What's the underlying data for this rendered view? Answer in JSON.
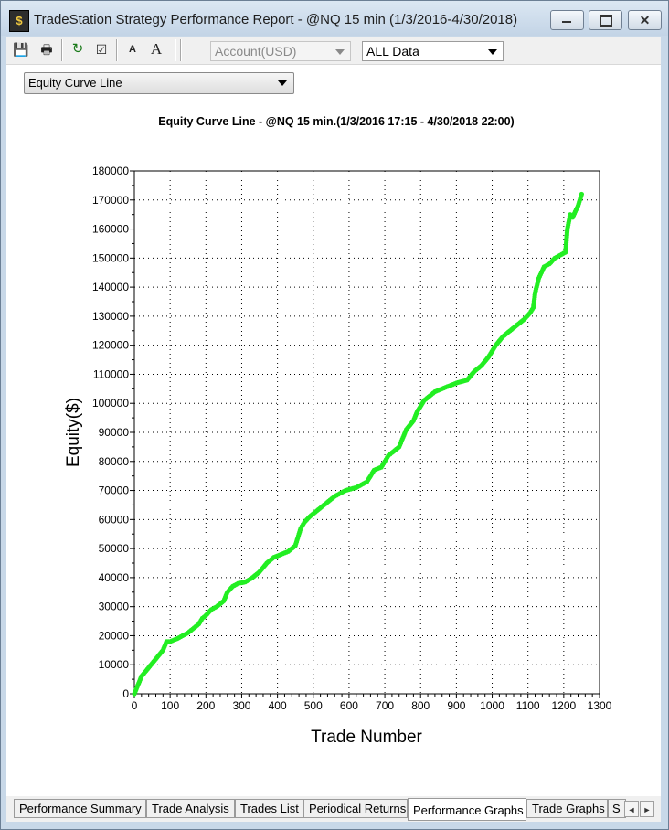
{
  "window": {
    "title": "TradeStation Strategy Performance Report - @NQ 15 min (1/3/2016-4/30/2018)",
    "app_icon": "tradestation-icon",
    "minimize_icon": "minimize-icon",
    "maximize_icon": "maximize-icon",
    "close_icon": "close-icon",
    "close_glyph": "✕"
  },
  "toolbar": {
    "buttons": [
      {
        "name": "save-icon",
        "glyph": "💾"
      },
      {
        "name": "print-icon",
        "glyph": "🖶"
      },
      {
        "name": "refresh-icon",
        "glyph": "↻"
      },
      {
        "name": "properties-icon",
        "glyph": "☑"
      },
      {
        "name": "decrease-font-icon",
        "glyph": "A"
      },
      {
        "name": "increase-font-icon",
        "glyph": "A"
      }
    ],
    "account_select": "Account(USD)",
    "data_select": "ALL Data"
  },
  "graph_type_select": "Equity Curve Line",
  "chart_data": {
    "type": "line",
    "title": "Equity Curve Line - @NQ 15 min.(1/3/2016 17:15 - 4/30/2018 22:00)",
    "xlabel": "Trade Number",
    "ylabel": "Equity($)",
    "xlim": [
      0,
      1300
    ],
    "ylim": [
      0,
      180000
    ],
    "x_ticks": [
      0,
      100,
      200,
      300,
      400,
      500,
      600,
      700,
      800,
      900,
      1000,
      1100,
      1200,
      1300
    ],
    "y_ticks": [
      0,
      10000,
      20000,
      30000,
      40000,
      50000,
      60000,
      70000,
      80000,
      90000,
      100000,
      110000,
      120000,
      130000,
      140000,
      150000,
      160000,
      170000,
      180000
    ],
    "grid": true,
    "line_color": "#000000",
    "marker_color": "#22ee22",
    "series": [
      {
        "x": [
          0,
          10,
          20,
          40,
          60,
          80,
          90,
          100,
          120,
          150,
          180,
          190,
          200,
          215,
          230,
          250,
          260,
          275,
          290,
          310,
          330,
          350,
          370,
          390,
          410,
          430,
          450,
          460,
          465,
          475,
          490,
          510,
          530,
          560,
          590,
          620,
          650,
          670,
          690,
          700,
          710,
          720,
          740,
          760,
          780,
          790,
          810,
          830,
          840,
          860,
          880,
          900,
          930,
          950,
          970,
          990,
          1010,
          1030,
          1050,
          1070,
          1090,
          1105,
          1115,
          1120,
          1130,
          1145,
          1160,
          1175,
          1190,
          1205,
          1210,
          1218,
          1225,
          1232,
          1240,
          1250
        ],
        "y": [
          0,
          3000,
          6000,
          9000,
          12000,
          15000,
          18000,
          18000,
          19000,
          21000,
          24000,
          26000,
          27000,
          29000,
          30000,
          32000,
          35000,
          37000,
          38000,
          38500,
          40000,
          42000,
          45000,
          47000,
          48000,
          49000,
          51000,
          55000,
          57000,
          59000,
          61000,
          63000,
          65000,
          68000,
          70000,
          71000,
          73000,
          77000,
          78000,
          80000,
          82000,
          83000,
          85000,
          91000,
          94000,
          97000,
          101000,
          103000,
          104000,
          105000,
          106000,
          107000,
          108000,
          111000,
          113000,
          116000,
          120000,
          123000,
          125000,
          127000,
          129000,
          131000,
          133000,
          138000,
          143000,
          147000,
          148000,
          150000,
          151000,
          152000,
          160000,
          165000,
          164000,
          166000,
          168000,
          172000
        ]
      }
    ]
  },
  "tabs": [
    {
      "label": "Performance Summary"
    },
    {
      "label": "Trade Analysis"
    },
    {
      "label": "Trades List"
    },
    {
      "label": "Periodical Returns"
    },
    {
      "label": "Performance Graphs",
      "active": true
    },
    {
      "label": "Trade Graphs"
    },
    {
      "label": "S"
    }
  ],
  "tab_scroll": {
    "left_glyph": "◄",
    "right_glyph": "►"
  }
}
